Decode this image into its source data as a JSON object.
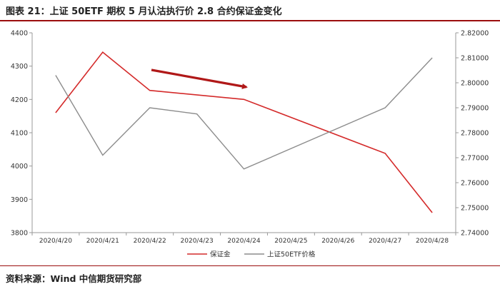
{
  "header": {
    "title": "图表 21：上证 50ETF 期权 5 月认沽执行价 2.8 合约保证金变化"
  },
  "footer": {
    "source": "资料来源：Wind  中信期货研究部"
  },
  "colors": {
    "accent": "#9b0d0d",
    "series_margin": "#d42a2a",
    "series_price": "#8c8c8c",
    "arrow": "#b01818"
  },
  "chart_data": {
    "type": "line",
    "categories": [
      "2020/4/20",
      "2020/4/21",
      "2020/4/22",
      "2020/4/23",
      "2020/4/24",
      "2020/4/25",
      "2020/4/26",
      "2020/4/27",
      "2020/4/28"
    ],
    "series": [
      {
        "name": "保证金",
        "axis": "left",
        "color": "#d42a2a",
        "values": [
          4160,
          4342,
          4227,
          null,
          4200,
          null,
          null,
          4038,
          3860
        ]
      },
      {
        "name": "上证50ETF价格",
        "axis": "right",
        "color": "#8c8c8c",
        "values": [
          2.803,
          2.771,
          2.79,
          2.7875,
          2.7655,
          null,
          null,
          2.79,
          2.81
        ]
      }
    ],
    "y_left": {
      "ylim": [
        3800,
        4400
      ],
      "ticks": [
        "3800",
        "3900",
        "4000",
        "4100",
        "4200",
        "4300",
        "4400"
      ]
    },
    "y_right": {
      "ylim": [
        2.74,
        2.82
      ],
      "ticks": [
        "2.74000",
        "2.75000",
        "2.76000",
        "2.77000",
        "2.78000",
        "2.79000",
        "2.80000",
        "2.81000",
        "2.82000"
      ]
    },
    "annotation": "downward-trend-arrow",
    "grid": false,
    "legend": "bottom-center"
  }
}
